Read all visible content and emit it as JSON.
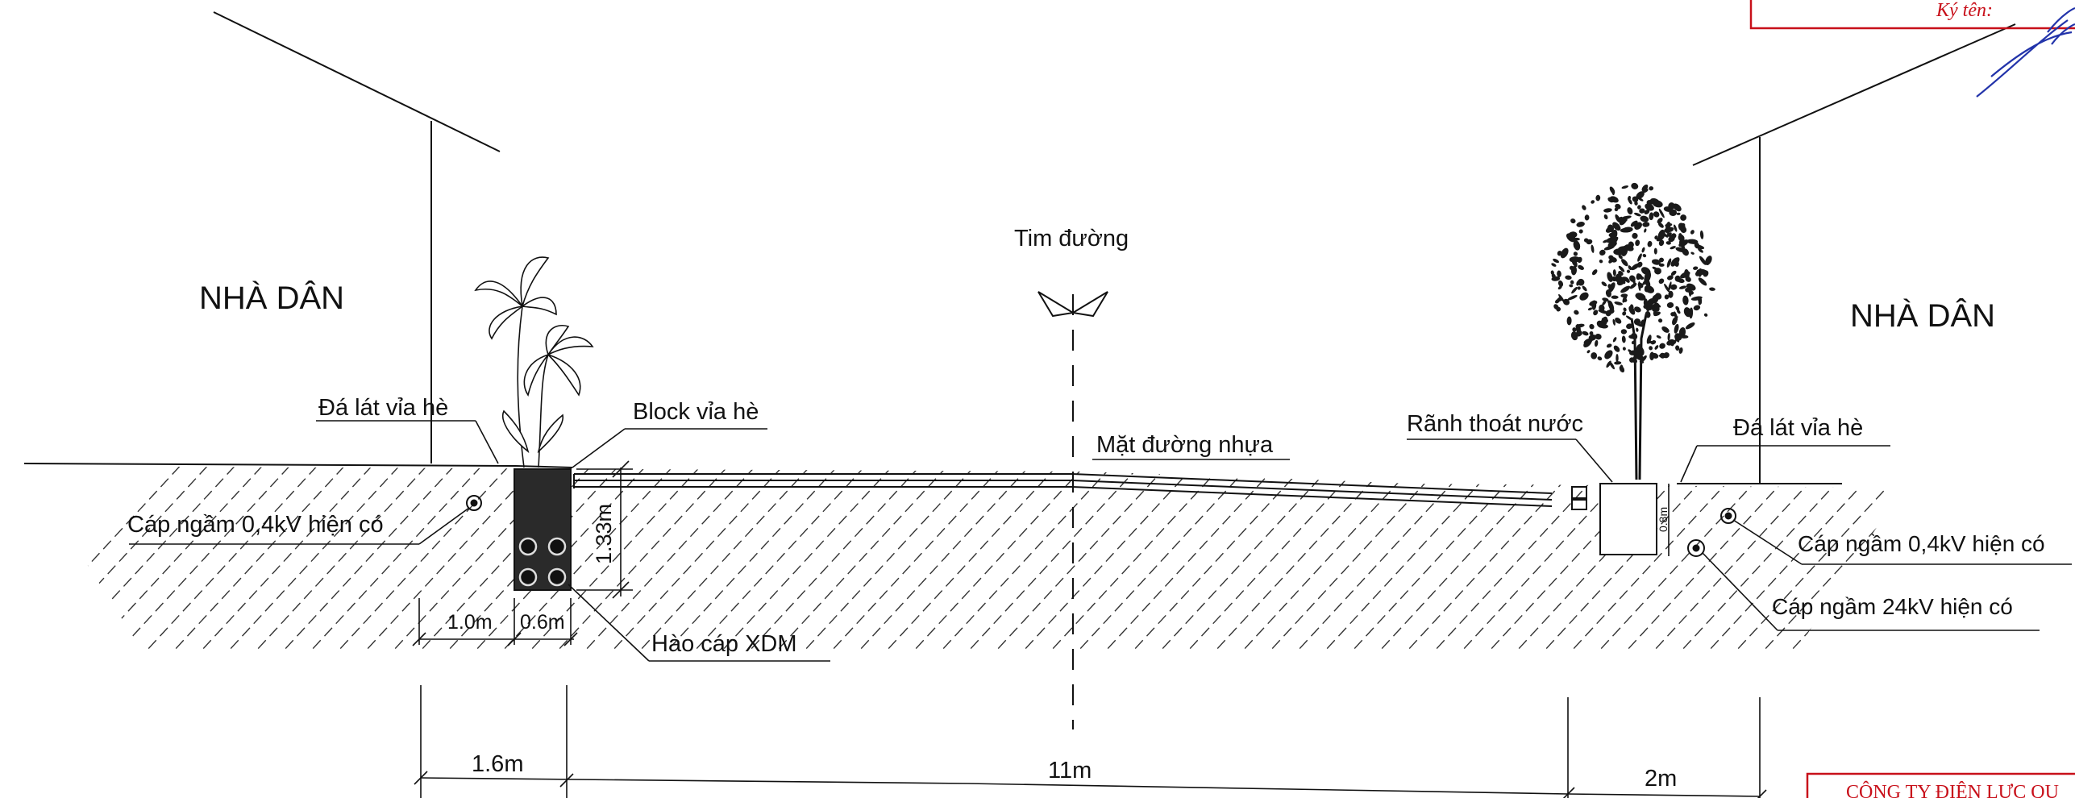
{
  "labels": {
    "house_left": "NHÀ DÂN",
    "house_right": "NHÀ DÂN",
    "road_center": "Tim đường",
    "paving_left": "Đá lát vỉa hè",
    "block_curb": "Block vỉa hè",
    "cable_04_left": "Cáp ngầm 0,4kV hiện có",
    "asphalt": "Mặt đường nhựa",
    "drain": "Rãnh thoát nước",
    "paving_right": "Đá lát vỉa hè",
    "cable_04_right": "Cáp ngầm 0,4kV hiện có",
    "cable_24_right": "Cáp ngầm 24kV hiện có",
    "trench": "Hào cáp XDM"
  },
  "dimensions": {
    "trench_depth": "1.33m",
    "offset_left": "1.0m",
    "trench_width": "0.6m",
    "drain_depth": "0.8m",
    "sidewalk_left": "1.6m",
    "road_width": "11m",
    "sidewalk_right": "2m"
  },
  "stamps": {
    "signature_label": "Ký tên:",
    "company_partial": "CÔNG TY ĐIỆN LỰC QU"
  },
  "colors": {
    "line": "#111111",
    "stamp": "#c8101a",
    "signature": "#2233aa",
    "trench_fill": "#2a2a2a"
  }
}
